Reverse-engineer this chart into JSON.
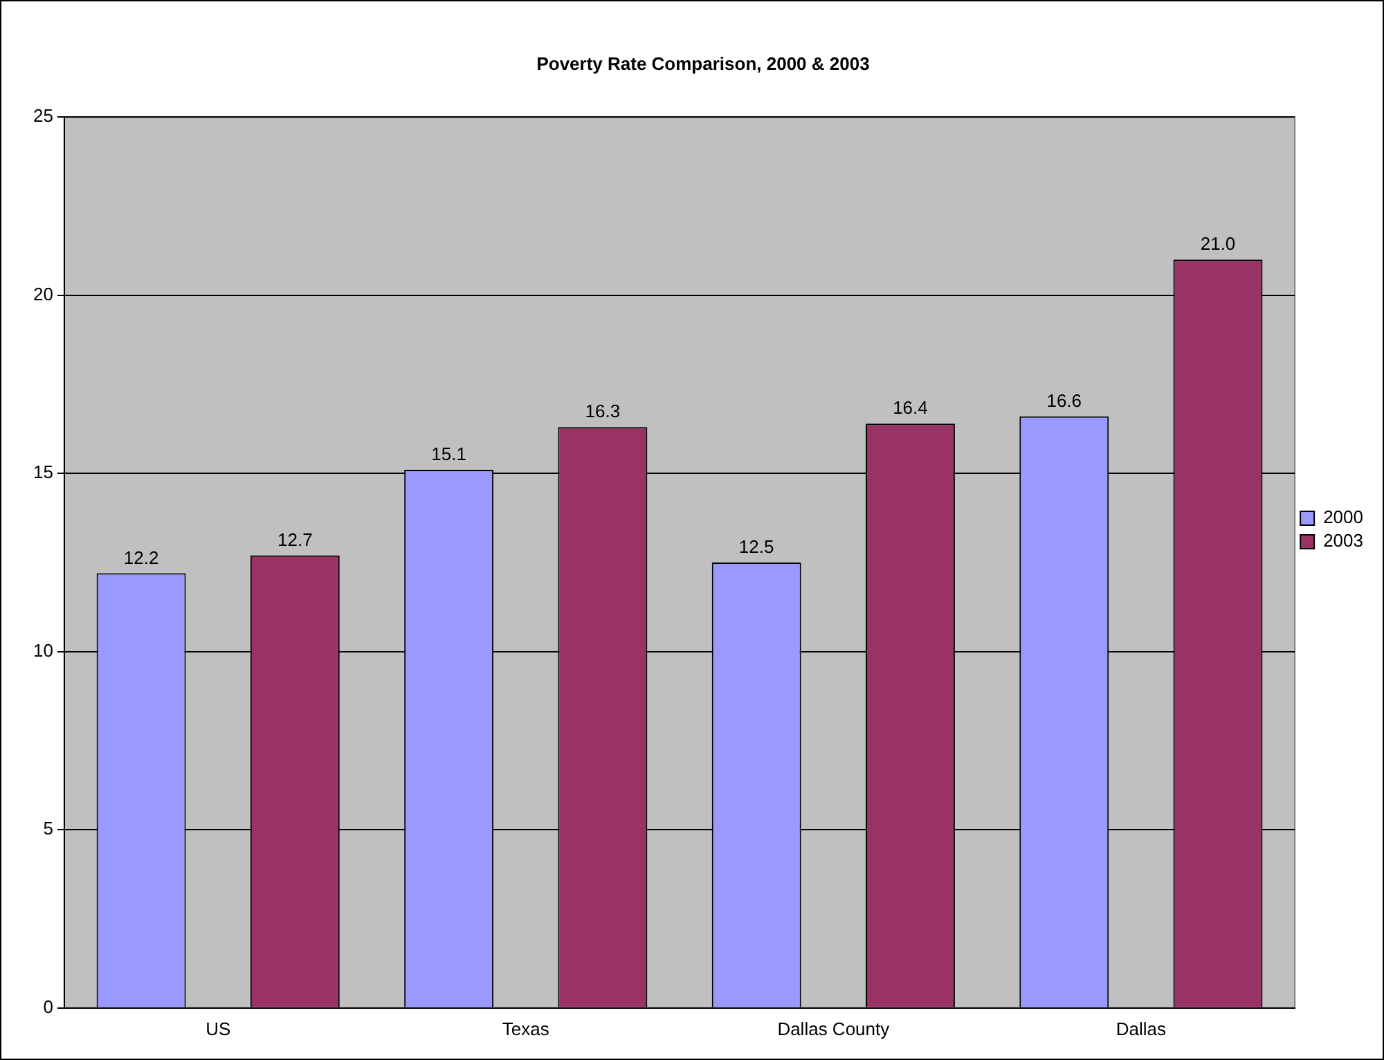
{
  "chart_data": {
    "type": "bar",
    "title": "Poverty Rate Comparison, 2000 & 2003",
    "categories": [
      "US",
      "Texas",
      "Dallas County",
      "Dallas"
    ],
    "series": [
      {
        "name": "2000",
        "color": "#9999ff",
        "values": [
          12.2,
          15.1,
          12.5,
          16.6
        ],
        "value_labels": [
          "12.2",
          "15.1",
          "12.5",
          "16.6"
        ]
      },
      {
        "name": "2003",
        "color": "#993366",
        "values": [
          12.7,
          16.3,
          16.4,
          21.0
        ],
        "value_labels": [
          "12.7",
          "16.3",
          "16.4",
          "21.0"
        ]
      }
    ],
    "ylim": [
      0,
      25
    ],
    "yticks": [
      0,
      5,
      10,
      15,
      20,
      25
    ],
    "grid": "y",
    "legend": "right"
  }
}
